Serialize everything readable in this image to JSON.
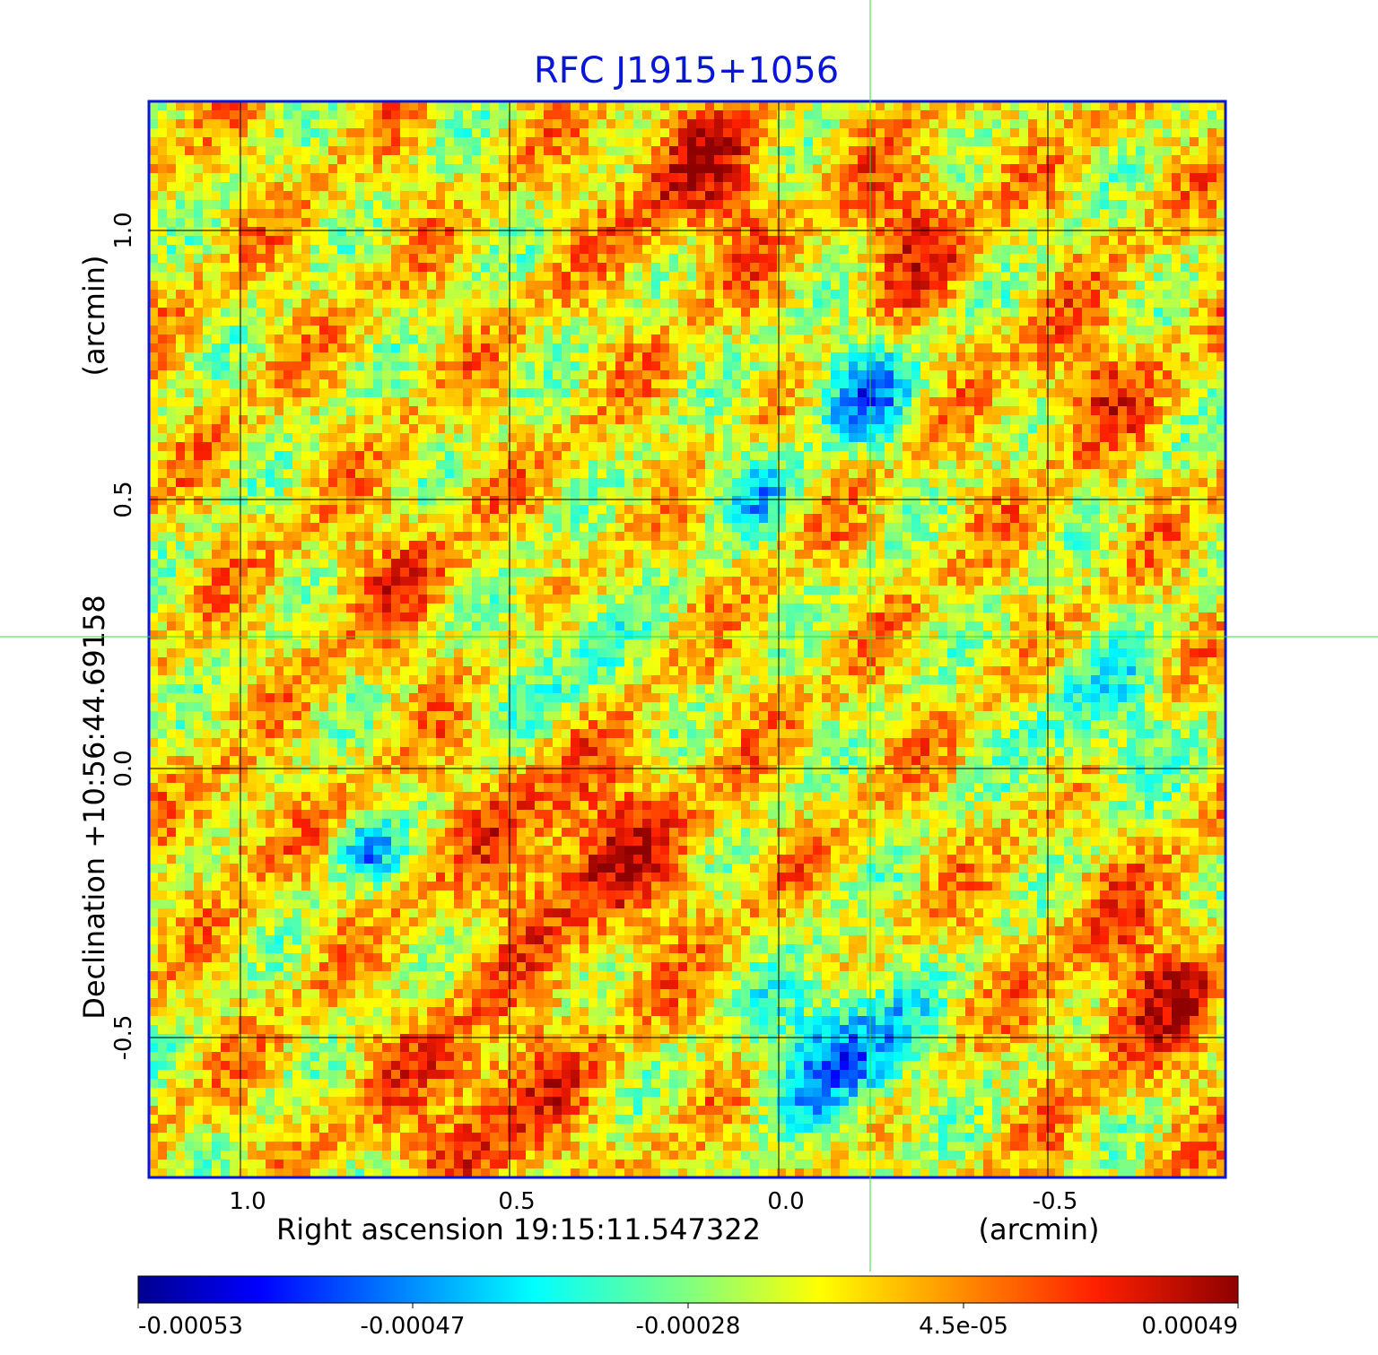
{
  "chart_data": {
    "type": "heatmap",
    "title": "RFC J1915+1056",
    "colormap": "jet",
    "grid": true,
    "xaxis": {
      "label": "Right ascension  19:15:11.547322",
      "unit_label": "(arcmin)",
      "range": [
        1.17,
        -0.83
      ],
      "ticks": [
        1.0,
        0.5,
        0.0,
        -0.5
      ],
      "tick_labels": [
        "1.0",
        "0.5",
        "0.0",
        "-0.5"
      ]
    },
    "yaxis": {
      "label": "Declination  +10:56:44.69158",
      "unit_label": "(arcmin)",
      "range": [
        -0.76,
        1.24
      ],
      "ticks": [
        -0.5,
        0.0,
        0.5,
        1.0
      ],
      "tick_labels": [
        "-0.5",
        "0.0",
        "0.5",
        "1.0"
      ]
    },
    "crosshair": {
      "x": -0.17,
      "y": 0.245,
      "color": "#33dd33"
    },
    "colorbar": {
      "range": [
        -0.00053,
        0.00049
      ],
      "ticks": [
        -0.00053,
        -0.00047,
        -0.00028,
        4.5e-05,
        0.00049
      ],
      "tick_labels": [
        "-0.00053",
        "-0.00047",
        "-0.00028",
        "4.5e-05",
        "0.00049"
      ],
      "position": "bottom"
    },
    "grid_size": [
      120,
      120
    ],
    "value_range": [
      -0.00053,
      0.00049
    ],
    "features": [
      {
        "x": 0.15,
        "y": 1.1,
        "value": 0.00044,
        "sigma": 0.1
      },
      {
        "x": -0.25,
        "y": 1.0,
        "value": 0.0004,
        "sigma": 0.08
      },
      {
        "x": 0.35,
        "y": -0.15,
        "value": 0.00042,
        "sigma": 0.14
      },
      {
        "x": 0.55,
        "y": -0.62,
        "value": 0.0004,
        "sigma": 0.12
      },
      {
        "x": -0.7,
        "y": -0.4,
        "value": 0.00038,
        "sigma": 0.12
      },
      {
        "x": -0.58,
        "y": 0.72,
        "value": 0.00035,
        "sigma": 0.08
      },
      {
        "x": 1.0,
        "y": -0.1,
        "value": 0.0003,
        "sigma": 0.06
      },
      {
        "x": 0.7,
        "y": 0.35,
        "value": 0.00028,
        "sigma": 0.1
      },
      {
        "x": -0.12,
        "y": -0.52,
        "value": -0.0004,
        "sigma": 0.1
      },
      {
        "x": -0.15,
        "y": 0.7,
        "value": -0.00032,
        "sigma": 0.07
      },
      {
        "x": 0.77,
        "y": -0.15,
        "value": -0.00032,
        "sigma": 0.04
      },
      {
        "x": -0.6,
        "y": 0.1,
        "value": -0.00015,
        "sigma": 0.1
      },
      {
        "x": 0.05,
        "y": 0.52,
        "value": -0.00018,
        "sigma": 0.06
      },
      {
        "x": 0.4,
        "y": 0.2,
        "value": -0.0001,
        "sigma": 0.1
      }
    ]
  }
}
